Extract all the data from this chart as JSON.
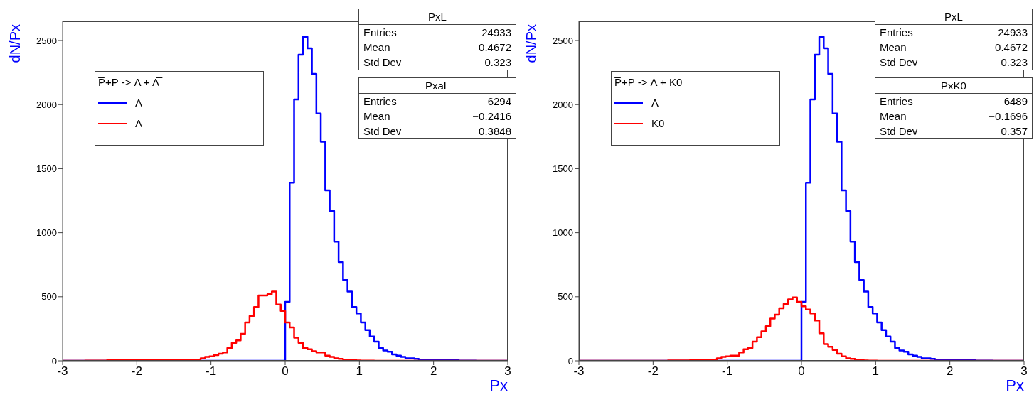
{
  "chart_data": [
    {
      "type": "histogram",
      "xlabel": "Px",
      "ylabel": "dN/Px",
      "legend_title": "P̅+P -> Λ + Λ̅",
      "legend": "top left",
      "xlim": [
        -3,
        3
      ],
      "xticks": [
        -3,
        -2,
        -1,
        0,
        1,
        2,
        3
      ],
      "ylim": [
        0,
        2650
      ],
      "yticks": [
        0,
        500,
        1000,
        1500,
        2000,
        2500
      ],
      "bins": [
        -3,
        -2.94,
        -2.88,
        -2.82,
        -2.76,
        -2.7,
        -2.64,
        -2.58,
        -2.52,
        -2.46,
        -2.4,
        -2.34,
        -2.28,
        -2.22,
        -2.16,
        -2.1,
        -2.04,
        -1.98,
        -1.92,
        -1.86,
        -1.8,
        -1.74,
        -1.68,
        -1.62,
        -1.56,
        -1.5,
        -1.44,
        -1.38,
        -1.32,
        -1.26,
        -1.2,
        -1.14,
        -1.08,
        -1.02,
        -0.96,
        -0.9,
        -0.84,
        -0.78,
        -0.72,
        -0.66,
        -0.6,
        -0.54,
        -0.48,
        -0.42,
        -0.36,
        -0.3,
        -0.24,
        -0.18,
        -0.12,
        -0.06,
        0,
        0.06,
        0.12,
        0.18,
        0.24,
        0.3,
        0.36,
        0.42,
        0.48,
        0.54,
        0.6,
        0.66,
        0.72,
        0.78,
        0.84,
        0.9,
        0.96,
        1.02,
        1.08,
        1.14,
        1.2,
        1.26,
        1.32,
        1.38,
        1.44,
        1.5,
        1.56,
        1.62,
        1.68,
        1.74,
        1.8,
        1.86,
        1.92,
        1.98,
        2.04,
        2.1,
        2.16,
        2.22,
        2.28,
        2.34,
        2.4,
        2.46,
        2.52,
        2.58,
        2.64,
        2.7,
        2.76,
        2.82,
        2.88,
        2.94,
        3
      ],
      "series": [
        {
          "name": "Λ",
          "color": "#0000ff",
          "values": [
            0,
            0,
            0,
            0,
            0,
            0,
            0,
            0,
            0,
            0,
            0,
            0,
            0,
            0,
            0,
            0,
            0,
            0,
            0,
            0,
            0,
            0,
            0,
            0,
            0,
            0,
            0,
            0,
            0,
            0,
            0,
            0,
            0,
            0,
            0,
            0,
            0,
            0,
            0,
            0,
            0,
            0,
            0,
            0,
            0,
            0,
            0,
            0,
            0,
            0,
            460,
            1390,
            2040,
            2390,
            2530,
            2440,
            2240,
            1930,
            1710,
            1330,
            1170,
            930,
            770,
            630,
            540,
            420,
            370,
            300,
            240,
            190,
            150,
            100,
            80,
            70,
            50,
            40,
            30,
            20,
            20,
            15,
            10,
            10,
            10,
            5,
            5,
            5,
            5,
            5,
            5,
            2,
            2,
            2,
            2,
            0,
            0,
            0,
            0,
            0,
            0,
            0
          ]
        },
        {
          "name": "Λ̅",
          "color": "#ff0000",
          "values": [
            0,
            0,
            0,
            0,
            0,
            2,
            2,
            2,
            2,
            2,
            5,
            5,
            5,
            5,
            5,
            5,
            5,
            5,
            5,
            5,
            10,
            10,
            10,
            10,
            10,
            10,
            10,
            10,
            10,
            10,
            10,
            20,
            30,
            35,
            45,
            55,
            65,
            100,
            140,
            160,
            210,
            300,
            350,
            420,
            510,
            510,
            520,
            540,
            440,
            390,
            300,
            260,
            180,
            140,
            100,
            90,
            75,
            65,
            65,
            40,
            30,
            20,
            15,
            10,
            5,
            5,
            3,
            2,
            2,
            1,
            0,
            0,
            0,
            0,
            0,
            0,
            0,
            0,
            0,
            0,
            0,
            0,
            0,
            0,
            0,
            0,
            0,
            0,
            0,
            0,
            0,
            0,
            0,
            0,
            0,
            0,
            0,
            0,
            0,
            0
          ]
        }
      ],
      "annotations": [
        "PxL",
        "Entries 24933",
        "Mean 0.4672",
        "Std Dev 0.323",
        "PxaL",
        "Entries 6294",
        "Mean −0.2416",
        "Std Dev 0.3848"
      ]
    },
    {
      "type": "histogram",
      "xlabel": "Px",
      "ylabel": "dN/Px",
      "legend_title": "P̅+P -> Λ + K0",
      "legend": "top left",
      "xlim": [
        -3,
        3
      ],
      "xticks": [
        -3,
        -2,
        -1,
        0,
        1,
        2,
        3
      ],
      "ylim": [
        0,
        2650
      ],
      "yticks": [
        0,
        500,
        1000,
        1500,
        2000,
        2500
      ],
      "bins": [
        -3,
        -2.94,
        -2.88,
        -2.82,
        -2.76,
        -2.7,
        -2.64,
        -2.58,
        -2.52,
        -2.46,
        -2.4,
        -2.34,
        -2.28,
        -2.22,
        -2.16,
        -2.1,
        -2.04,
        -1.98,
        -1.92,
        -1.86,
        -1.8,
        -1.74,
        -1.68,
        -1.62,
        -1.56,
        -1.5,
        -1.44,
        -1.38,
        -1.32,
        -1.26,
        -1.2,
        -1.14,
        -1.08,
        -1.02,
        -0.96,
        -0.9,
        -0.84,
        -0.78,
        -0.72,
        -0.66,
        -0.6,
        -0.54,
        -0.48,
        -0.42,
        -0.36,
        -0.3,
        -0.24,
        -0.18,
        -0.12,
        -0.06,
        0,
        0.06,
        0.12,
        0.18,
        0.24,
        0.3,
        0.36,
        0.42,
        0.48,
        0.54,
        0.6,
        0.66,
        0.72,
        0.78,
        0.84,
        0.9,
        0.96,
        1.02,
        1.08,
        1.14,
        1.2,
        1.26,
        1.32,
        1.38,
        1.44,
        1.5,
        1.56,
        1.62,
        1.68,
        1.74,
        1.8,
        1.86,
        1.92,
        1.98,
        2.04,
        2.1,
        2.16,
        2.22,
        2.28,
        2.34,
        2.4,
        2.46,
        2.52,
        2.58,
        2.64,
        2.7,
        2.76,
        2.82,
        2.88,
        2.94,
        3
      ],
      "series": [
        {
          "name": "Λ",
          "color": "#0000ff",
          "values": [
            0,
            0,
            0,
            0,
            0,
            0,
            0,
            0,
            0,
            0,
            0,
            0,
            0,
            0,
            0,
            0,
            0,
            0,
            0,
            0,
            0,
            0,
            0,
            0,
            0,
            0,
            0,
            0,
            0,
            0,
            0,
            0,
            0,
            0,
            0,
            0,
            0,
            0,
            0,
            0,
            0,
            0,
            0,
            0,
            0,
            0,
            0,
            0,
            0,
            0,
            460,
            1390,
            2040,
            2390,
            2530,
            2440,
            2240,
            1930,
            1710,
            1330,
            1170,
            930,
            770,
            630,
            540,
            420,
            370,
            300,
            240,
            190,
            150,
            100,
            80,
            70,
            50,
            40,
            30,
            20,
            20,
            15,
            10,
            10,
            10,
            5,
            5,
            5,
            5,
            5,
            5,
            2,
            2,
            2,
            2,
            0,
            0,
            0,
            0,
            0,
            0,
            0
          ]
        },
        {
          "name": "K0",
          "color": "#ff0000",
          "values": [
            0,
            0,
            0,
            0,
            0,
            0,
            0,
            0,
            0,
            0,
            0,
            0,
            0,
            0,
            0,
            0,
            0,
            0,
            0,
            0,
            3,
            3,
            3,
            3,
            3,
            10,
            10,
            10,
            10,
            10,
            10,
            20,
            30,
            35,
            40,
            40,
            65,
            90,
            100,
            150,
            185,
            230,
            270,
            330,
            360,
            410,
            445,
            480,
            495,
            460,
            425,
            400,
            370,
            315,
            215,
            130,
            110,
            85,
            55,
            35,
            20,
            15,
            10,
            5,
            3,
            2,
            1,
            0,
            0,
            0,
            0,
            0,
            0,
            0,
            0,
            0,
            0,
            0,
            0,
            0,
            0,
            0,
            0,
            0,
            0,
            0,
            0,
            0,
            0,
            0,
            0,
            0,
            0,
            0,
            0,
            0,
            0,
            0,
            0,
            0
          ]
        }
      ],
      "annotations": [
        "PxL",
        "Entries 24933",
        "Mean 0.4672",
        "Std Dev 0.323",
        "PxK0",
        "Entries 6489",
        "Mean −0.1696",
        "Std Dev 0.357"
      ]
    }
  ]
}
